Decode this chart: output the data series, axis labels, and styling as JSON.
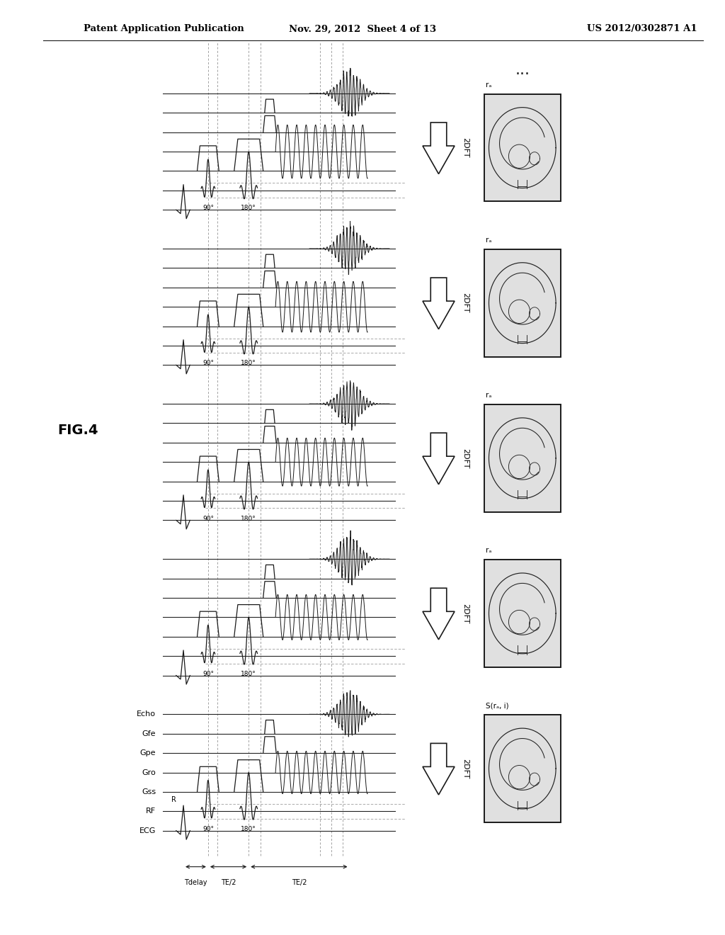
{
  "header_left": "Patent Application Publication",
  "header_mid": "Nov. 29, 2012  Sheet 4 of 13",
  "header_right": "US 2012/0302871 A1",
  "fig_label": "FIG.4",
  "channel_labels": [
    "ECG",
    "RF",
    "Gss",
    "Gro",
    "Gpe",
    "Gfe",
    "Echo"
  ],
  "angle_90": "90°",
  "angle_180": "180°",
  "dft_label": "2DFT",
  "ra_label": "rₐ",
  "s_label": "S(rₐ, i)",
  "timing_label_delay": "Tdelay",
  "timing_label_te2a": "TE/2",
  "timing_label_te2b": "TE/2",
  "r_label": "R",
  "n_reps": 5,
  "bg_color": "#ffffff",
  "lc": "#1a1a1a",
  "dc": "#888888",
  "dots_text": "..."
}
